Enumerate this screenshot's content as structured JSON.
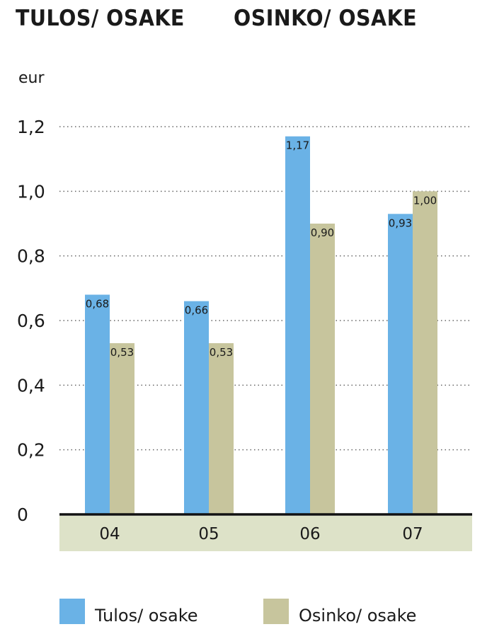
{
  "titles": {
    "left": "TULOS/ OSAKE",
    "right": "OSINKO/ OSAKE"
  },
  "colors": {
    "series1": "#6ab2e6",
    "series2": "#c7c59d",
    "axis_band": "#dde2c8",
    "grid": "#666666"
  },
  "chart_data": {
    "type": "bar",
    "ylabel": "eur",
    "ylim": [
      0,
      1.2
    ],
    "yticks": [
      0,
      0.2,
      0.4,
      0.6,
      0.8,
      1.0,
      1.2
    ],
    "ytick_labels": [
      "0",
      "0,2",
      "0,4",
      "0,6",
      "0,8",
      "1,0",
      "1,2"
    ],
    "categories": [
      "04",
      "05",
      "06",
      "07"
    ],
    "grid": "horizontal dotted",
    "legend": "bottom",
    "series": [
      {
        "name": "Tulos/ osake",
        "values": [
          0.68,
          0.66,
          1.17,
          0.93
        ],
        "labels": [
          "0,68",
          "0,66",
          "1,17",
          "0,93"
        ]
      },
      {
        "name": "Osinko/ osake",
        "values": [
          0.53,
          0.53,
          0.9,
          1.0
        ],
        "labels": [
          "0,53",
          "0,53",
          "0,90",
          "1,00"
        ]
      }
    ]
  }
}
